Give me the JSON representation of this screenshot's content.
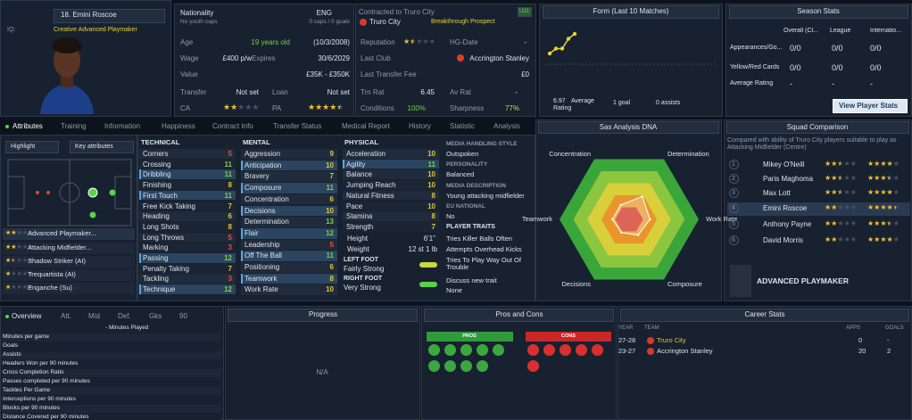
{
  "player": {
    "name": "18. Emini Roscoe",
    "iq_label": "IQ:",
    "role": "Creative Advanced Playmaker"
  },
  "info": {
    "nationality_label": "Nationality",
    "nationality": "ENG",
    "youth_caps": "No youth caps",
    "caps": "0 caps / 0 goals",
    "age_label": "Age",
    "age": "19 years old",
    "dob": "(10/3/2008)",
    "wage_label": "Wage",
    "wage": "£400 p/w",
    "expires_label": "Expires",
    "expires": "30/6/2029",
    "value_label": "Value",
    "value": "£35K - £350K",
    "transfer_label": "Transfer",
    "transfer": "Not set",
    "loan_label": "Loan",
    "loan": "Not set",
    "ca_label": "CA",
    "ca_stars": 2,
    "pa_label": "PA",
    "pa_stars": 4.5
  },
  "contract": {
    "title": "Contracted to Truro City",
    "badge": "U21",
    "club": "Truro City",
    "status": "Breakthrough Prospect",
    "reputation_label": "Reputation",
    "reputation_stars": 1.5,
    "hg_label": "HG-Date",
    "hg": "-",
    "last_club_label": "Last Club",
    "last_club": "Accrington Stanley",
    "fee_label": "Last Transfer Fee",
    "fee": "£0",
    "trn_label": "Trn Rat",
    "trn": "6.45",
    "av_label": "Av Rat",
    "av": "-",
    "conditions_label": "Conditions",
    "conditions": "100%",
    "sharpness_label": "Sharpness",
    "sharpness": "77%"
  },
  "form": {
    "title": "Form (Last 10 Matches)",
    "ratings": [
      6.7,
      6.9,
      6.9,
      7.3,
      7.5
    ],
    "average": "6.97",
    "average_label": "Average Rating",
    "goals": "1 goal",
    "assists": "0 assists"
  },
  "season": {
    "title": "Season Stats",
    "columns": [
      "Overall (Cl...",
      "League",
      "Internatio..."
    ],
    "rows": [
      {
        "label": "Appearances/Go...",
        "cells": [
          "0/0",
          "0/0",
          "0/0"
        ]
      },
      {
        "label": "Yellow/Red Cards",
        "cells": [
          "0/0",
          "0/0",
          "0/0"
        ]
      },
      {
        "label": "Average Rating",
        "cells": [
          "-",
          "-",
          "-"
        ]
      }
    ],
    "button": "View Player Stats"
  },
  "tabs": [
    "Attributes",
    "Training",
    "Information",
    "Happiness",
    "Contract Info",
    "Transfer Status",
    "Medical Report",
    "History",
    "Statistic",
    "Analysis"
  ],
  "left": {
    "highlight": "Highlight",
    "key_attributes": "Key attributes",
    "roles": [
      {
        "name": "Advanced Playmaker...",
        "stars": 2
      },
      {
        "name": "Attacking Midfielder...",
        "stars": 2
      },
      {
        "name": "Shadow Striker (At)",
        "stars": 1.5
      },
      {
        "name": "Trequartista (At)",
        "stars": 1
      },
      {
        "name": "Enganche (Su)",
        "stars": 1
      }
    ]
  },
  "technical": {
    "title": "TECHNICAL",
    "attributes": [
      {
        "name": "Corners",
        "value": 5
      },
      {
        "name": "Crossing",
        "value": 11
      },
      {
        "name": "Dribbling",
        "value": 11,
        "key": true
      },
      {
        "name": "Finishing",
        "value": 8
      },
      {
        "name": "First Touch",
        "value": 11,
        "key": true
      },
      {
        "name": "Free Kick Taking",
        "value": 7
      },
      {
        "name": "Heading",
        "value": 6
      },
      {
        "name": "Long Shots",
        "value": 8
      },
      {
        "name": "Long Throws",
        "value": 5
      },
      {
        "name": "Marking",
        "value": 3
      },
      {
        "name": "Passing",
        "value": 12,
        "key": true
      },
      {
        "name": "Penalty Taking",
        "value": 7
      },
      {
        "name": "Tackling",
        "value": 3
      },
      {
        "name": "Technique",
        "value": 12,
        "key": true
      }
    ]
  },
  "mental": {
    "title": "MENTAL",
    "attributes": [
      {
        "name": "Aggression",
        "value": 9
      },
      {
        "name": "Anticipation",
        "value": 10,
        "key": true
      },
      {
        "name": "Bravery",
        "value": 7
      },
      {
        "name": "Composure",
        "value": 11,
        "key": true
      },
      {
        "name": "Concentration",
        "value": 6
      },
      {
        "name": "Decisions",
        "value": 10,
        "key": true
      },
      {
        "name": "Determination",
        "value": 13
      },
      {
        "name": "Flair",
        "value": 12,
        "key": true
      },
      {
        "name": "Leadership",
        "value": 5
      },
      {
        "name": "Off The Ball",
        "value": 11,
        "key": true
      },
      {
        "name": "Positioning",
        "value": 6
      },
      {
        "name": "Teamwork",
        "value": 8,
        "key": true
      },
      {
        "name": "Work Rate",
        "value": 10
      }
    ]
  },
  "physical": {
    "title": "PHYSICAL",
    "attributes": [
      {
        "name": "Acceleration",
        "value": 10
      },
      {
        "name": "Agility",
        "value": 11,
        "key": true
      },
      {
        "name": "Balance",
        "value": 10
      },
      {
        "name": "Jumping Reach",
        "value": 10
      },
      {
        "name": "Natural Fitness",
        "value": 8
      },
      {
        "name": "Pace",
        "value": 10
      },
      {
        "name": "Stamina",
        "value": 8
      },
      {
        "name": "Strength",
        "value": 7
      }
    ],
    "height_label": "Height",
    "height": "6'1\"",
    "weight_label": "Weight",
    "weight": "12 st 1 lb",
    "left_foot_label": "LEFT FOOT",
    "left_foot": "Fairly Strong",
    "right_foot_label": "RIGHT FOOT",
    "right_foot": "Very Strong"
  },
  "media": {
    "sections": [
      {
        "title": "MEDIA HANDLING STYLE",
        "text": "Outspoken"
      },
      {
        "title": "PERSONALITY",
        "text": "Balanced"
      },
      {
        "title": "MEDIA DESCRIPTION",
        "text": "Young attacking midfielder"
      },
      {
        "title": "EU NATIONAL",
        "text": "No"
      }
    ],
    "traits_title": "PLAYER TRAITS",
    "traits": [
      "Tries Killer Balls Often",
      "Attempts Overhead Kicks",
      "Tries To Play Way Out Of Trouble"
    ],
    "discuss": "Discuss new trait",
    "discuss_value": "None"
  },
  "dna": {
    "title": "Sas Analysis DNA",
    "levels": 5,
    "level_colors": [
      "#3aa63a",
      "#8cc63f",
      "#d9cf3a",
      "#e8962c",
      "#d2321c"
    ],
    "axes": [
      {
        "label": "Concentration",
        "value": 1.2
      },
      {
        "label": "Determination",
        "value": 1.9
      },
      {
        "label": "Work Rate",
        "value": 1.5
      },
      {
        "label": "Composure",
        "value": 1.3
      },
      {
        "label": "Decisions",
        "value": 1.1
      },
      {
        "label": "Teamwork",
        "value": 1.2
      }
    ]
  },
  "squad": {
    "title": "Squad Comparison",
    "note": "Compared with ability of Truro City players suitable to play as Attacking Midfielder (Centre)",
    "players": [
      {
        "rank": 1,
        "name": "Mikey O'Neill",
        "current": 2.5,
        "potential": 4
      },
      {
        "rank": 2,
        "name": "Paris Maghoma",
        "current": 2.5,
        "potential": 3.5
      },
      {
        "rank": 3,
        "name": "Max Lott",
        "current": 2.5,
        "potential": 4
      },
      {
        "rank": 4,
        "name": "Emini Roscoe",
        "current": 2,
        "potential": 4.5,
        "self": true
      },
      {
        "rank": 5,
        "name": "Anthony Payne",
        "current": 2,
        "potential": 3.5
      },
      {
        "rank": 6,
        "name": "David Morris",
        "current": 2,
        "potential": 4
      }
    ],
    "role": "ADVANCED PLAYMAKER"
  },
  "overview": {
    "tabs": [
      "Overview",
      "Att.",
      "Mid",
      "Def.",
      "Gks",
      "90"
    ],
    "minutes_played": "- Minutes Played",
    "metrics": [
      "Minutes per game",
      "Goals",
      "Assists",
      "Headers Won per 90 minutes",
      "Cross Completion Ratio",
      "Passes completed per 90 minutes",
      "Tackles Per Game",
      "Interceptions per 90 minutes",
      "Blocks per 90 minutes",
      "Distance Covered per 90 minutes"
    ]
  },
  "progress": {
    "title": "Progress",
    "empty": "N/A"
  },
  "pros_cons": {
    "title": "Pros and Cons",
    "pros": "PROS",
    "cons": "CONS"
  },
  "career": {
    "title": "Career Stats",
    "headers": [
      "YEAR",
      "TEAM",
      "APPS",
      "GOALS"
    ],
    "rows": [
      [
        "27-28",
        "Truro City",
        "0",
        "-"
      ],
      [
        "23-27",
        "Accrington Stanley",
        "20",
        "2"
      ]
    ]
  }
}
